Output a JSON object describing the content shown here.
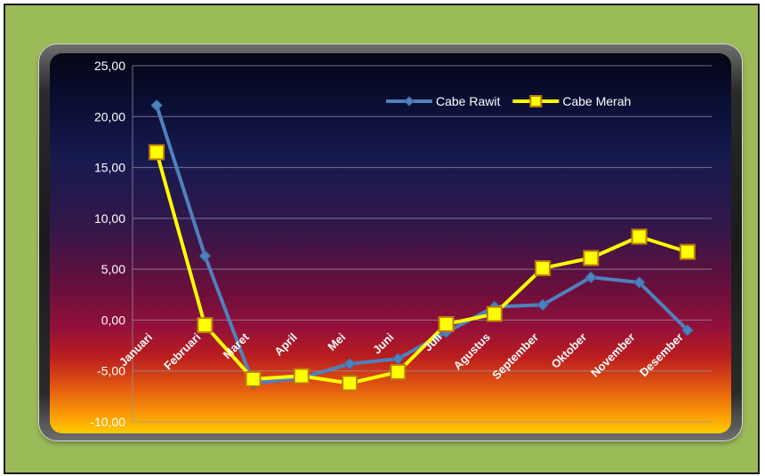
{
  "chart_data": {
    "type": "line",
    "categories": [
      "Januari",
      "Februari",
      "Maret",
      "April",
      "Mei",
      "Juni",
      "Juli",
      "Agustus",
      "September",
      "Oktober",
      "November",
      "Desember"
    ],
    "series": [
      {
        "name": "Cabe Rawit",
        "color": "#4f81bd",
        "marker": "diamond",
        "values": [
          21.1,
          6.3,
          -6.2,
          -5.7,
          -4.3,
          -3.8,
          -1.2,
          1.3,
          1.5,
          4.2,
          3.7,
          -1.0
        ]
      },
      {
        "name": "Cabe Merah",
        "color": "#ffff00",
        "marker": "square",
        "values": [
          16.5,
          -0.5,
          -5.8,
          -5.5,
          -6.2,
          -5.1,
          -0.4,
          0.6,
          5.1,
          6.1,
          8.2,
          6.7
        ]
      }
    ],
    "yticks": [
      "25,00",
      "20,00",
      "15,00",
      "10,00",
      "5,00",
      "0,00",
      "-5,00",
      "-10,00"
    ],
    "ylim": [
      -10,
      25
    ],
    "grid": true,
    "legend_position": "top-right"
  }
}
